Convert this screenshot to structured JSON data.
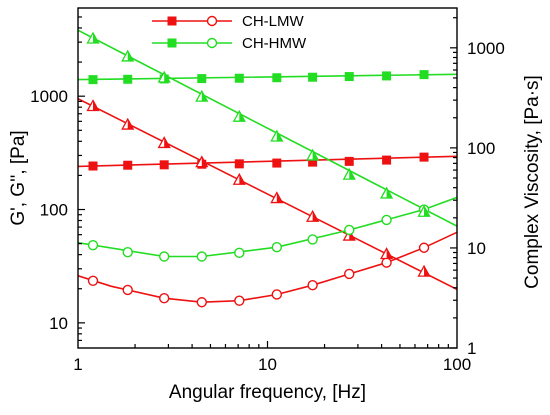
{
  "chart_data": {
    "type": "line",
    "xlabel": "Angular frequency, [Hz]",
    "ylabel_left": "G', G'', [Pa]",
    "ylabel_right": "Complex Viscosity, [Pa·s]",
    "x_scale": "log",
    "y_left_scale": "log",
    "y_right_scale": "log",
    "xlim": [
      1,
      100
    ],
    "ylim_left": [
      6,
      6000
    ],
    "ylim_right": [
      1,
      2500
    ],
    "x_ticks": [
      1,
      10,
      100
    ],
    "x_tick_labels": [
      "1",
      "10",
      "100"
    ],
    "y_left_ticks": [
      10,
      100,
      1000
    ],
    "y_left_tick_labels": [
      "10",
      "100",
      "1000"
    ],
    "y_right_ticks": [
      1,
      10,
      100,
      1000
    ],
    "y_right_tick_labels": [
      "1",
      "10",
      "100",
      "1000"
    ],
    "legend": [
      {
        "label": "CH-LMW",
        "color": "#ee1111"
      },
      {
        "label": "CH-HMW",
        "color": "#22dd22"
      }
    ],
    "series": [
      {
        "name": "CH-LMW",
        "role": "G'",
        "axis": "left",
        "color": "#ee1111",
        "marker": "filled-square",
        "x": [
          1.2,
          1.83,
          2.85,
          4.5,
          7.1,
          11.2,
          17.3,
          27,
          42.5,
          67
        ],
        "y": [
          242,
          246,
          248,
          251,
          253,
          257,
          262,
          266,
          273,
          290
        ]
      },
      {
        "name": "CH-LMW",
        "role": "G''",
        "axis": "left",
        "color": "#ee1111",
        "marker": "open-circle",
        "x": [
          1.2,
          1.83,
          2.85,
          4.5,
          7.1,
          11.2,
          17.3,
          27,
          42.5,
          67
        ],
        "y": [
          23.5,
          19.5,
          16.5,
          15.2,
          15.7,
          17.8,
          21.5,
          27,
          34,
          46
        ]
      },
      {
        "name": "CH-LMW",
        "role": "eta*",
        "axis": "right",
        "color": "#ee1111",
        "marker": "half-triangle",
        "x": [
          1.2,
          1.83,
          2.85,
          4.5,
          7.1,
          11.2,
          17.3,
          27,
          42.5,
          67
        ],
        "y": [
          262,
          171,
          112,
          72,
          48,
          31.5,
          20.5,
          13.3,
          8.7,
          5.8
        ]
      },
      {
        "name": "CH-HMW",
        "role": "G'",
        "axis": "left",
        "color": "#22dd22",
        "marker": "filled-square",
        "x": [
          1.2,
          1.83,
          2.85,
          4.5,
          7.1,
          11.2,
          17.3,
          27,
          42.5,
          67
        ],
        "y": [
          1400,
          1410,
          1420,
          1430,
          1440,
          1455,
          1470,
          1490,
          1510,
          1550
        ]
      },
      {
        "name": "CH-HMW",
        "role": "G''",
        "axis": "left",
        "color": "#22dd22",
        "marker": "open-circle",
        "x": [
          1.2,
          1.83,
          2.85,
          4.5,
          7.1,
          11.2,
          17.3,
          27,
          42.5,
          67
        ],
        "y": [
          48.5,
          42,
          38.5,
          38.5,
          41.5,
          46.5,
          54.5,
          66,
          81,
          100
        ]
      },
      {
        "name": "CH-HMW",
        "role": "eta*",
        "axis": "right",
        "color": "#22dd22",
        "marker": "half-triangle",
        "x": [
          1.2,
          1.83,
          2.85,
          4.5,
          7.1,
          11.2,
          17.3,
          27,
          42.5,
          67
        ],
        "y": [
          1240,
          820,
          505,
          325,
          205,
          130,
          84,
          54,
          35,
          23
        ]
      }
    ],
    "lines": [
      {
        "color": "#ee1111",
        "axis": "left",
        "x": [
          1,
          1.5,
          2.85,
          4.5,
          7.1,
          11.2,
          17.3,
          27,
          42.5,
          67,
          100
        ],
        "y": [
          26,
          21,
          16.5,
          15.2,
          15.7,
          17.8,
          21.5,
          27,
          34,
          46,
          63
        ]
      },
      {
        "color": "#ee1111",
        "axis": "left",
        "x": [
          1,
          100
        ],
        "y": [
          240,
          295
        ]
      },
      {
        "color": "#ee1111",
        "axis": "right",
        "x": [
          1,
          100
        ],
        "y": [
          310,
          3.85
        ]
      },
      {
        "color": "#22dd22",
        "axis": "left",
        "x": [
          1,
          100
        ],
        "y": [
          1400,
          1560
        ]
      },
      {
        "color": "#22dd22",
        "axis": "left",
        "x": [
          1,
          2.85,
          4.5,
          11.2,
          27,
          67,
          100
        ],
        "y": [
          51,
          38.5,
          38.5,
          46.5,
          66,
          100,
          128
        ]
      },
      {
        "color": "#22dd22",
        "axis": "right",
        "x": [
          1,
          100
        ],
        "y": [
          1500,
          16.5
        ]
      }
    ]
  }
}
